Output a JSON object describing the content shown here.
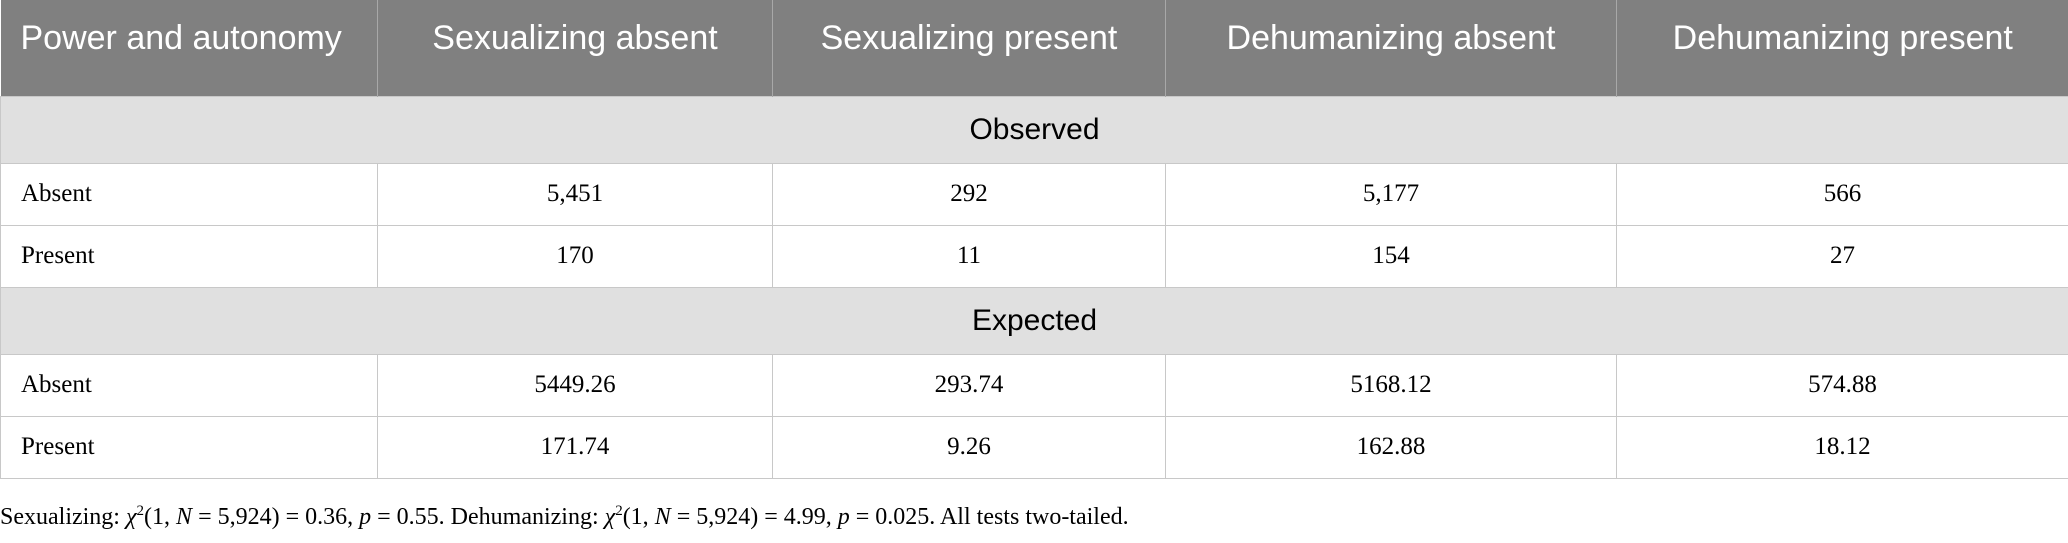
{
  "table": {
    "header": [
      "Power and autonomy",
      "Sexualizing absent",
      "Sexualizing present",
      "Dehumanizing absent",
      "Dehumanizing present"
    ],
    "sections": [
      {
        "label": "Observed",
        "rows": [
          [
            "Absent",
            "5,451",
            "292",
            "5,177",
            "566"
          ],
          [
            "Present",
            "170",
            "11",
            "154",
            "27"
          ]
        ]
      },
      {
        "label": "Expected",
        "rows": [
          [
            "Absent",
            "5449.26",
            "293.74",
            "5168.12",
            "574.88"
          ],
          [
            "Present",
            "171.74",
            "9.26",
            "162.88",
            "18.12"
          ]
        ]
      }
    ]
  },
  "footnote": [
    "Sexualizing: ",
    "χ",
    "2",
    "(1, ",
    "N",
    " = 5,924) = 0.36, ",
    "p",
    " = 0.55. Dehumanizing: ",
    "χ",
    "2",
    "(1, ",
    "N",
    " = 5,924) = 4.99, ",
    "p",
    " = 0.025. All tests two-tailed."
  ]
}
